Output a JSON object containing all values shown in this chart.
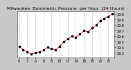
{
  "title": "Milwaukee  Barometric Pressure  per Hour  (24 Hours)",
  "background_color": "#c8c8c8",
  "plot_bg_color": "#ffffff",
  "line_color": "#dd0000",
  "marker_color": "#111111",
  "grid_color": "#999999",
  "hours": [
    0,
    1,
    2,
    3,
    4,
    5,
    6,
    7,
    8,
    9,
    10,
    11,
    12,
    13,
    14,
    15,
    16,
    17,
    18,
    19,
    20,
    21,
    22,
    23
  ],
  "pressure": [
    29.42,
    29.36,
    29.32,
    29.28,
    29.3,
    29.32,
    29.35,
    29.4,
    29.38,
    29.35,
    29.42,
    29.5,
    29.55,
    29.6,
    29.58,
    29.64,
    29.7,
    29.68,
    29.75,
    29.8,
    29.88,
    29.92,
    29.96,
    30.0
  ],
  "ylim": [
    29.22,
    30.06
  ],
  "yticks": [
    29.3,
    29.4,
    29.5,
    29.6,
    29.7,
    29.8,
    29.9,
    30.0
  ],
  "ytick_labels": [
    "29.3",
    "29.4",
    "29.5",
    "29.6",
    "29.7",
    "29.8",
    "29.9",
    "30.0"
  ],
  "xticks": [
    0,
    2,
    4,
    6,
    8,
    10,
    12,
    14,
    16,
    18,
    20,
    22
  ],
  "xtick_labels": [
    "0",
    "2",
    "4",
    "6",
    "8",
    "10",
    "12",
    "14",
    "16",
    "18",
    "20",
    "22"
  ],
  "title_fontsize": 4.5,
  "tick_fontsize": 3.5,
  "line_width": 0.6,
  "marker_size": 1.5,
  "marker_style": "s"
}
